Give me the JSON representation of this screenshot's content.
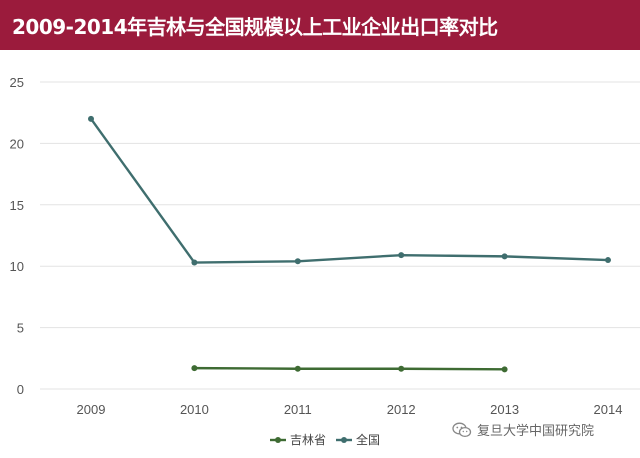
{
  "chart_data": {
    "type": "line",
    "title": "2009-2014年吉林与全国规模以上工业企业出口率对比",
    "categories": [
      "2009",
      "2010",
      "2011",
      "2012",
      "2013",
      "2014"
    ],
    "ylim": [
      0,
      25
    ],
    "yticks": [
      "0",
      "5",
      "10",
      "15",
      "20",
      "25"
    ],
    "grid": true,
    "legend_position": "bottom",
    "series": [
      {
        "name": "吉林省",
        "color": "#3e6b33",
        "values": [
          null,
          1.7,
          1.65,
          1.65,
          1.6,
          null
        ]
      },
      {
        "name": "全国",
        "color": "#3f6e6e",
        "values": [
          22.0,
          10.3,
          10.4,
          10.9,
          10.8,
          10.5
        ]
      }
    ]
  },
  "colors": {
    "title_background": "#9b1b3c",
    "title_text": "#ffffff",
    "gridline": "#e3e3e3"
  },
  "watermark": {
    "icon": "wechat-icon",
    "text": "复旦大学中国研究院"
  }
}
